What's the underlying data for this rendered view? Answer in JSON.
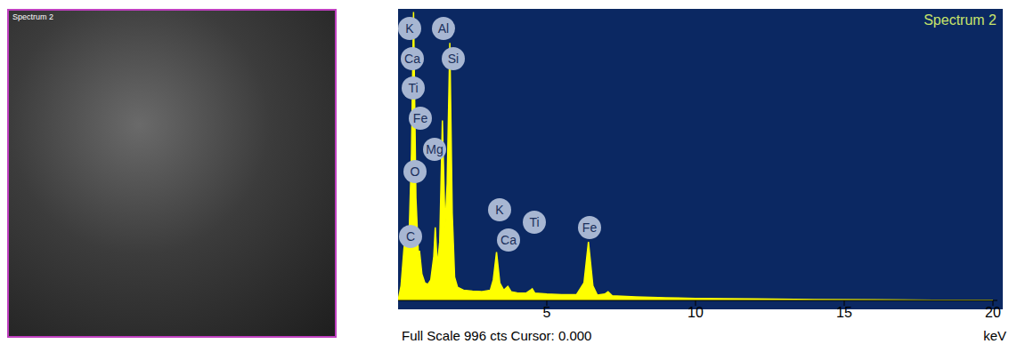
{
  "image": {
    "label": "Spectrum 2"
  },
  "chart_data": {
    "type": "area",
    "title": "Spectrum 2",
    "footer": "Full Scale 996 cts Cursor: 0.000",
    "x_label": "keV",
    "x": [
      0.0,
      0.1,
      0.2,
      0.28,
      0.35,
      0.45,
      0.52,
      0.6,
      0.7,
      0.72,
      0.8,
      0.9,
      1.0,
      1.1,
      1.2,
      1.25,
      1.32,
      1.4,
      1.49,
      1.58,
      1.65,
      1.74,
      1.82,
      1.9,
      2.0,
      2.2,
      2.5,
      2.8,
      3.1,
      3.2,
      3.31,
      3.42,
      3.55,
      3.69,
      3.8,
      4.0,
      4.3,
      4.45,
      4.51,
      4.6,
      5.0,
      5.5,
      6.0,
      6.25,
      6.4,
      6.55,
      6.7,
      6.95,
      7.06,
      7.2,
      8.0,
      9.0,
      10.0,
      12.0,
      14.0,
      16.0,
      18.0,
      20.0
    ],
    "values": [
      0,
      50,
      180,
      240,
      150,
      500,
      985,
      350,
      120,
      170,
      90,
      60,
      55,
      70,
      150,
      250,
      120,
      200,
      615,
      250,
      400,
      880,
      300,
      80,
      45,
      35,
      32,
      30,
      35,
      70,
      165,
      60,
      35,
      48,
      30,
      26,
      25,
      35,
      40,
      25,
      22,
      20,
      20,
      60,
      200,
      50,
      18,
      22,
      30,
      16,
      12,
      9,
      7,
      5,
      3,
      2,
      1,
      1
    ],
    "color": "#ffff00",
    "xlim": [
      0,
      20.15
    ],
    "xticks": [
      5,
      10,
      15,
      20
    ],
    "ylim": [
      0,
      996
    ],
    "grid": false,
    "tick_labels": "x",
    "annotations": [
      "K",
      "Ca",
      "Ti",
      "Fe",
      "Mg",
      "O",
      "C",
      "Al",
      "Si",
      "K",
      "Ca",
      "Ti",
      "Fe"
    ]
  }
}
